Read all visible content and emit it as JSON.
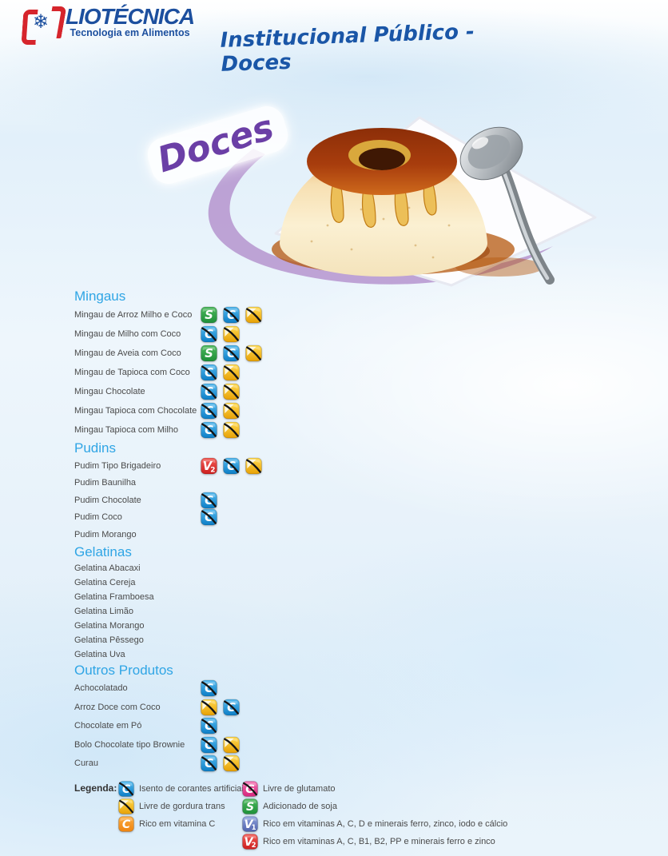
{
  "header": {
    "logo": {
      "brand": "LIOTÉCNICA",
      "tagline": "Tecnologia em Alimentos",
      "brand_color": "#1c4f9e",
      "accent_color": "#d6252c"
    },
    "title": "Institucional Público - Doces",
    "title_color": "#1a56a7"
  },
  "hero": {
    "badge": "Doces",
    "badge_color": "#6b3fa6",
    "swoosh_color": "#b18ccb"
  },
  "icon_styles": {
    "no_colorants": {
      "name": "no-artificial-colorants-icon",
      "glyph": "C",
      "sub": "",
      "bg_top": "#54b9ee",
      "bg_bottom": "#0d7ec6",
      "slash": true,
      "corner": false
    },
    "trans_fat_free": {
      "name": "trans-fat-free-icon",
      "glyph": "",
      "sub": "",
      "bg_top": "#ffd94f",
      "bg_bottom": "#e7a106",
      "slash": true,
      "corner": true
    },
    "soy": {
      "name": "soy-added-icon",
      "glyph": "S",
      "sub": "",
      "bg_top": "#4cb85d",
      "bg_bottom": "#1e8f39",
      "slash": false,
      "corner": false
    },
    "glutamate_free": {
      "name": "glutamate-free-icon",
      "glyph": "G",
      "sub": "",
      "bg_top": "#f272b1",
      "bg_bottom": "#d6267d",
      "slash": true,
      "corner": false
    },
    "vitamin_c": {
      "name": "vitamin-c-icon",
      "glyph": "C",
      "sub": "",
      "bg_top": "#fbab41",
      "bg_bottom": "#ee8410",
      "slash": false,
      "corner": false
    },
    "v1": {
      "name": "vitamins-v1-icon",
      "glyph": "V",
      "sub": "1",
      "bg_top": "#8ea2dc",
      "bg_bottom": "#5163ad",
      "slash": false,
      "corner": false
    },
    "v2": {
      "name": "vitamins-v2-icon",
      "glyph": "V",
      "sub": "2",
      "bg_top": "#f15b55",
      "bg_bottom": "#cd1f1f",
      "slash": false,
      "corner": false
    }
  },
  "menu": {
    "sections": [
      {
        "id": "mingaus",
        "title": "Mingaus",
        "items": [
          {
            "label": "Mingau de Arroz Milho e Coco",
            "icons": [
              "soy",
              "no_colorants",
              "trans_fat_free"
            ]
          },
          {
            "label": "Mingau de Milho com Coco",
            "icons": [
              "no_colorants",
              "trans_fat_free"
            ]
          },
          {
            "label": "Mingau de Aveia com Coco",
            "icons": [
              "soy",
              "no_colorants",
              "trans_fat_free"
            ]
          },
          {
            "label": "Mingau de Tapioca com Coco",
            "icons": [
              "no_colorants",
              "trans_fat_free"
            ]
          },
          {
            "label": "Mingau Chocolate",
            "icons": [
              "no_colorants",
              "trans_fat_free"
            ]
          },
          {
            "label": "Mingau Tapioca com Chocolate",
            "icons": [
              "no_colorants",
              "trans_fat_free"
            ]
          },
          {
            "label": "Mingau Tapioca com Milho",
            "icons": [
              "no_colorants",
              "trans_fat_free"
            ]
          }
        ]
      },
      {
        "id": "pudins",
        "title": "Pudins",
        "items": [
          {
            "label": "Pudim Tipo Brigadeiro",
            "icons": [
              "v2",
              "no_colorants",
              "trans_fat_free"
            ]
          },
          {
            "label": "Pudim Baunilha",
            "icons": []
          },
          {
            "label": "Pudim Chocolate",
            "icons": [
              "no_colorants"
            ]
          },
          {
            "label": "Pudim Coco",
            "icons": [
              "no_colorants"
            ]
          },
          {
            "label": "Pudim Morango",
            "icons": []
          }
        ]
      },
      {
        "id": "gelatinas",
        "title": "Gelatinas",
        "items": [
          {
            "label": "Gelatina Abacaxi",
            "icons": []
          },
          {
            "label": "Gelatina Cereja",
            "icons": []
          },
          {
            "label": "Gelatina Framboesa",
            "icons": []
          },
          {
            "label": "Gelatina Limão",
            "icons": []
          },
          {
            "label": "Gelatina Morango",
            "icons": []
          },
          {
            "label": "Gelatina Pêssego",
            "icons": []
          },
          {
            "label": "Gelatina Uva",
            "icons": []
          }
        ]
      },
      {
        "id": "outros",
        "title": "Outros Produtos",
        "items": [
          {
            "label": "Achocolatado",
            "icons": [
              "no_colorants"
            ]
          },
          {
            "label": "Arroz Doce com Coco",
            "icons": [
              "trans_fat_free",
              "no_colorants"
            ]
          },
          {
            "label": "Chocolate em Pó",
            "icons": [
              "no_colorants"
            ]
          },
          {
            "label": "Bolo Chocolate tipo Brownie",
            "icons": [
              "no_colorants",
              "trans_fat_free"
            ]
          },
          {
            "label": "Curau",
            "icons": [
              "no_colorants",
              "trans_fat_free"
            ]
          }
        ]
      }
    ]
  },
  "legend": {
    "title": "Legenda:",
    "columns": [
      {
        "items": [
          {
            "icon": "no_colorants",
            "label": "Isento de corantes artificiais"
          },
          {
            "icon": "trans_fat_free",
            "label": "Livre de gordura trans"
          },
          {
            "icon": "vitamin_c",
            "label": "Rico em vitamina C"
          }
        ]
      },
      {
        "items": [
          {
            "icon": "glutamate_free",
            "label": "Livre de glutamato"
          },
          {
            "icon": "soy",
            "label": "Adicionado de soja"
          },
          {
            "icon": "v1",
            "label": "Rico em vitaminas A, C, D e minerais ferro, zinco, iodo e cálcio"
          },
          {
            "icon": "v2",
            "label": "Rico em vitaminas A, C, B1, B2, PP e minerais ferro e zinco"
          }
        ]
      }
    ]
  }
}
